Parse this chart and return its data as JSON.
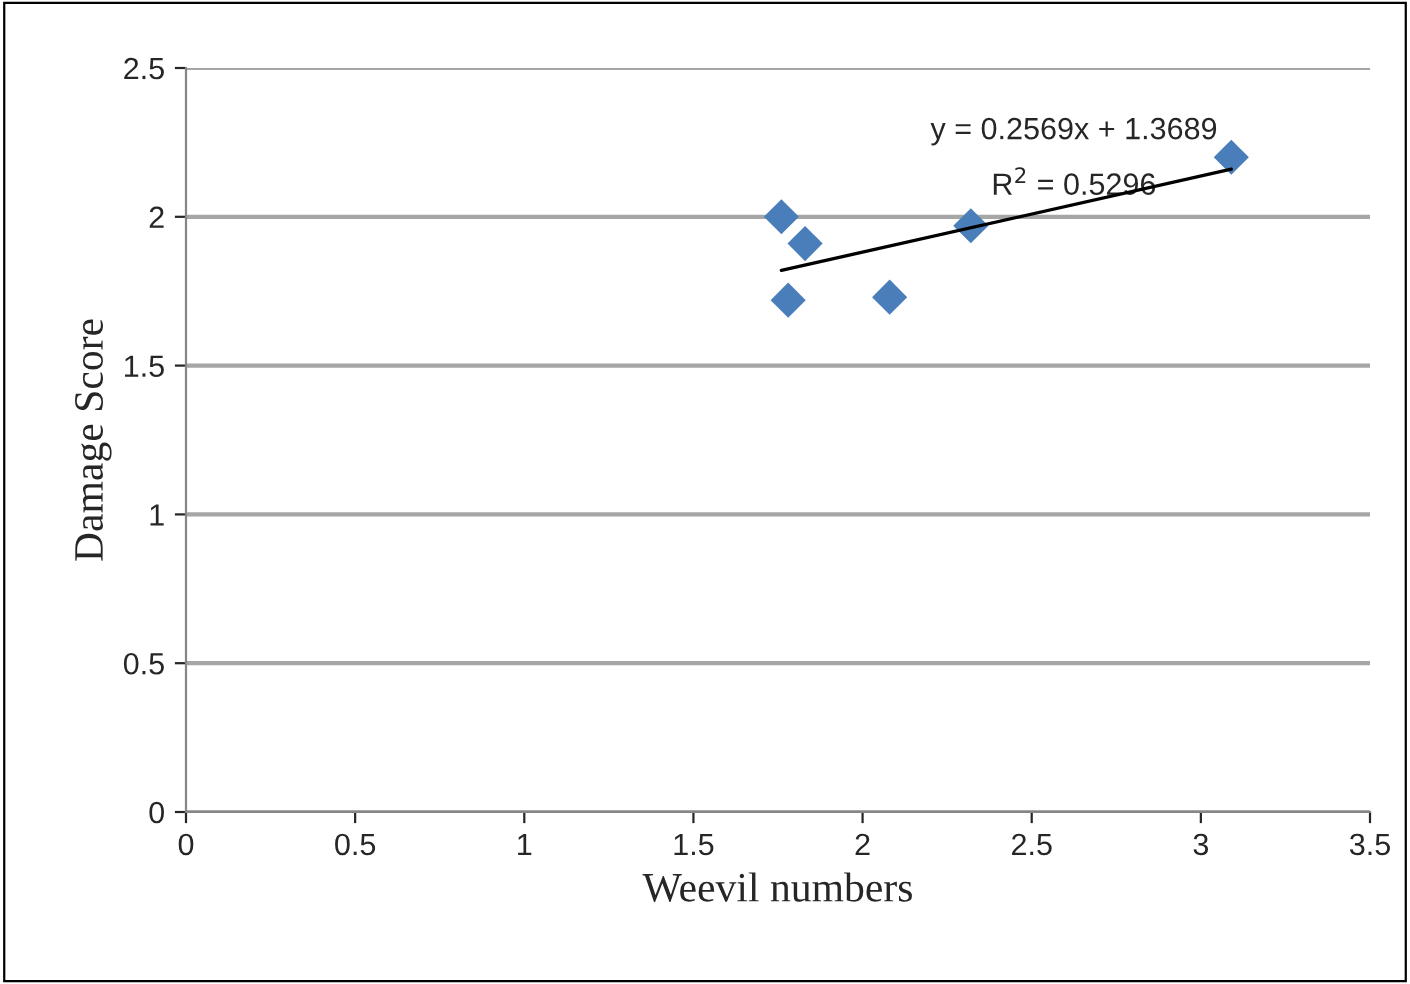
{
  "chart_data": {
    "type": "scatter",
    "xlabel": "Weevil numbers",
    "ylabel": "Damage Score",
    "x": [
      1.76,
      1.83,
      1.78,
      2.08,
      2.32,
      3.09
    ],
    "series": [
      {
        "marker": "diamond",
        "color": "#4a7ebb",
        "values": [
          2.0,
          1.91,
          1.72,
          1.73,
          1.97,
          2.2
        ]
      },
      {
        "type": "line",
        "color": "#000000",
        "x": [
          1.76,
          3.09
        ],
        "values": [
          1.82,
          2.16
        ]
      }
    ],
    "xlim": [
      0,
      3.5
    ],
    "xticks": [
      0,
      0.5,
      1,
      1.5,
      2,
      2.5,
      3,
      3.5
    ],
    "ylim": [
      0,
      2.5
    ],
    "yticks": [
      0,
      0.5,
      1,
      1.5,
      2,
      2.5
    ],
    "grid": "y",
    "annotations": [
      "y = 0.2569x + 1.3689",
      "R$^{2}$ = 0.5296"
    ]
  }
}
